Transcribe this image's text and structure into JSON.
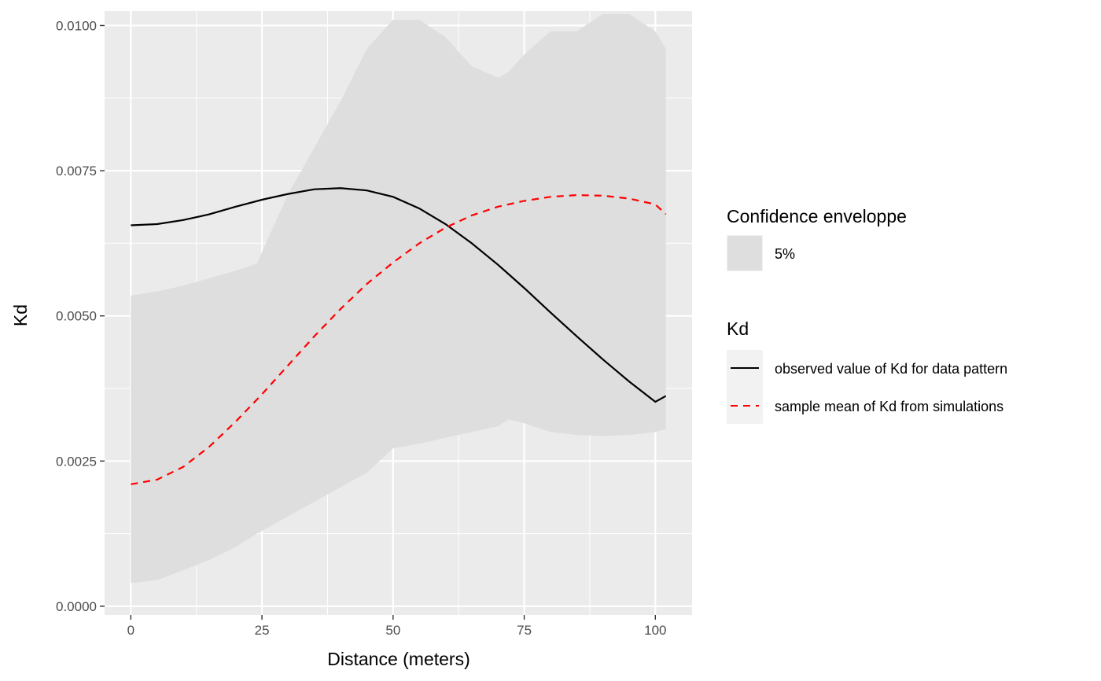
{
  "chart_data": {
    "type": "line",
    "xlabel": "Distance (meters)",
    "ylabel": "Kd",
    "xlim": [
      -5,
      107
    ],
    "ylim": [
      -0.00015,
      0.01025
    ],
    "x_ticks": [
      0,
      25,
      50,
      75,
      100
    ],
    "x_tick_labels": [
      "0",
      "25",
      "50",
      "75",
      "100"
    ],
    "y_ticks": [
      0,
      0.0025,
      0.005,
      0.0075,
      0.01
    ],
    "y_tick_labels": [
      "0.0000",
      "0.0025",
      "0.0050",
      "0.0075",
      "0.0100"
    ],
    "grid": true,
    "panel_background": "#ebebeb",
    "envelope": {
      "name": "5%",
      "color": "#dedede",
      "x": [
        0,
        5,
        10,
        15,
        20,
        24,
        30,
        35,
        40,
        45,
        50,
        55,
        60,
        65,
        70,
        72,
        75,
        80,
        85,
        90,
        95,
        100,
        102
      ],
      "upper": [
        0.00535,
        0.00542,
        0.00552,
        0.00565,
        0.00578,
        0.0059,
        0.0071,
        0.0079,
        0.0087,
        0.0096,
        0.0101,
        0.0101,
        0.0098,
        0.0093,
        0.0091,
        0.0092,
        0.0095,
        0.0099,
        0.0099,
        0.0102,
        0.0102,
        0.0099,
        0.0096
      ],
      "lower": [
        0.0004,
        0.00045,
        0.00062,
        0.0008,
        0.00102,
        0.00125,
        0.00155,
        0.0018,
        0.00205,
        0.0023,
        0.00272,
        0.0028,
        0.0029,
        0.003,
        0.0031,
        0.00322,
        0.00315,
        0.003,
        0.00295,
        0.00293,
        0.00295,
        0.003,
        0.00305
      ]
    },
    "legend_envelope_title": "Confidence enveloppe",
    "legend_lines_title": "Kd",
    "legend_placement": "right",
    "series": [
      {
        "name": "observed value of Kd for data pattern",
        "color": "#000000",
        "dash": "solid",
        "x": [
          0,
          5,
          10,
          15,
          20,
          25,
          30,
          35,
          40,
          45,
          50,
          55,
          60,
          65,
          70,
          75,
          80,
          85,
          90,
          95,
          100,
          102
        ],
        "y": [
          0.00656,
          0.00658,
          0.00665,
          0.00675,
          0.00688,
          0.007,
          0.0071,
          0.00718,
          0.0072,
          0.00716,
          0.00705,
          0.00685,
          0.00658,
          0.00625,
          0.00588,
          0.00548,
          0.00506,
          0.00465,
          0.00425,
          0.00387,
          0.00352,
          0.00362
        ]
      },
      {
        "name": "sample mean of Kd from simulations",
        "color": "#ff0000",
        "dash": "dashed",
        "x": [
          0,
          5,
          10,
          15,
          20,
          25,
          30,
          35,
          40,
          45,
          50,
          55,
          60,
          65,
          70,
          75,
          80,
          85,
          90,
          95,
          100,
          102
        ],
        "y": [
          0.0021,
          0.00218,
          0.0024,
          0.00275,
          0.00318,
          0.00365,
          0.00415,
          0.00465,
          0.00512,
          0.00555,
          0.00592,
          0.00625,
          0.00652,
          0.00673,
          0.00688,
          0.00698,
          0.00705,
          0.00708,
          0.00707,
          0.00702,
          0.00692,
          0.00675
        ]
      }
    ]
  }
}
